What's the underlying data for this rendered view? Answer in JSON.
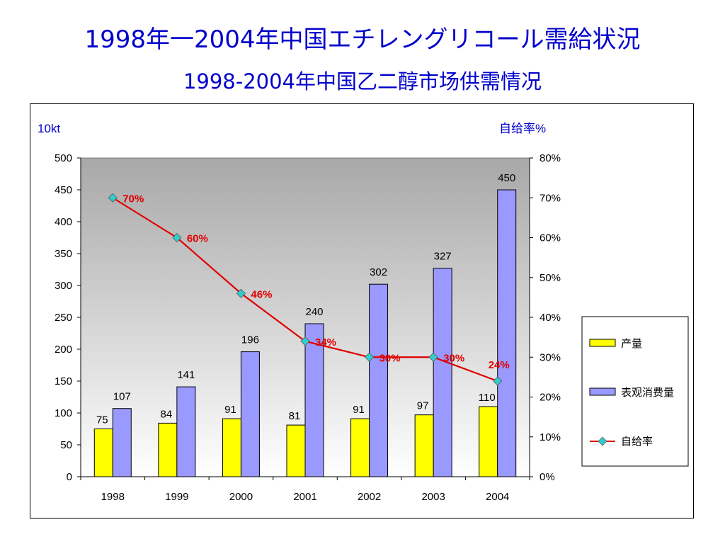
{
  "page": {
    "title": "1998年一2004年中国エチレングリコール需給状況",
    "subtitle": "1998-2004年中国乙二醇市场供需情况"
  },
  "chart_data": {
    "type": "bar",
    "categories": [
      "1998",
      "1999",
      "2000",
      "2001",
      "2002",
      "2003",
      "2004"
    ],
    "left_unit": "10kt",
    "right_unit": "自给率%",
    "ylim": [
      0,
      500
    ],
    "yticks": [
      0,
      50,
      100,
      150,
      200,
      250,
      300,
      350,
      400,
      450,
      500
    ],
    "y2lim": [
      0,
      80
    ],
    "y2ticks": [
      "0%",
      "10%",
      "20%",
      "30%",
      "40%",
      "50%",
      "60%",
      "70%",
      "80%"
    ],
    "series": [
      {
        "name": "产量",
        "type": "bar",
        "color": "#ffff00",
        "values": [
          75,
          84,
          91,
          81,
          91,
          97,
          110
        ]
      },
      {
        "name": "表观消费量",
        "type": "bar",
        "color": "#9999ff",
        "values": [
          107,
          141,
          196,
          240,
          302,
          327,
          450
        ]
      },
      {
        "name": "自给率",
        "type": "line",
        "axis": "right",
        "color": "#e00000",
        "marker_color": "#33cccc",
        "values": [
          70,
          60,
          46,
          34,
          30,
          30,
          24
        ],
        "labels": [
          "70%",
          "60%",
          "46%",
          "34%",
          "30%",
          "30%",
          "24%"
        ]
      }
    ],
    "legend": "right",
    "plot_background": "gradient-gray"
  }
}
